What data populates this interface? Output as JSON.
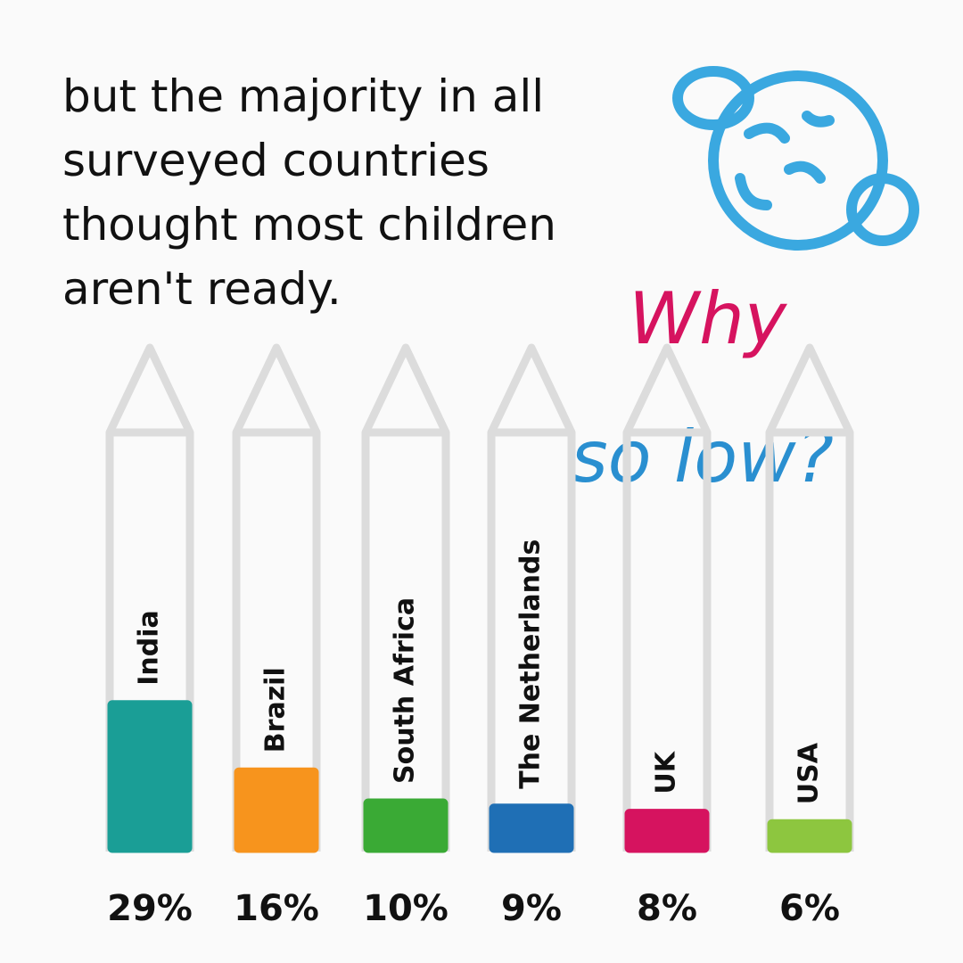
{
  "chart_data": {
    "type": "bar",
    "title": "but the majority in all surveyed countries thought most children aren't ready.",
    "annotations": [
      "Why",
      "so low?"
    ],
    "categories": [
      "India",
      "Brazil",
      "South Africa",
      "The Netherlands",
      "UK",
      "USA"
    ],
    "values": [
      29,
      16,
      10,
      9,
      8,
      6
    ],
    "value_labels": [
      "29%",
      "16%",
      "10%",
      "9%",
      "8%",
      "6%"
    ],
    "colors": [
      "#1a9e96",
      "#f7941d",
      "#3aaa35",
      "#1f6fb5",
      "#d6135f",
      "#8dc63f"
    ]
  }
}
